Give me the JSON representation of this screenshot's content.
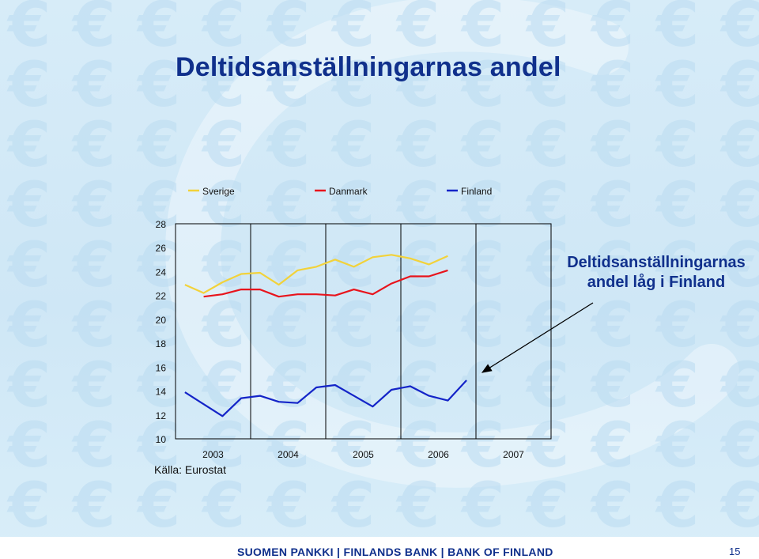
{
  "slide": {
    "title": "Deltidsanställningarnas andel",
    "annotation_line1": "Deltidsanställningarnas",
    "annotation_line2": "andel låg i Finland",
    "source": "Källa: Eurostat",
    "footer": "SUOMEN PANKKI | FINLANDS BANK | BANK OF FINLAND",
    "page_number": "15",
    "background_glyph": "€"
  },
  "colors": {
    "title": "#10308c",
    "sverige": "#f2d23a",
    "danmark": "#e8141c",
    "finland": "#1424c8"
  },
  "chart_data": {
    "type": "line",
    "title": "",
    "xlabel": "",
    "ylabel": "",
    "ylim": [
      10,
      28
    ],
    "yticks": [
      10,
      12,
      14,
      16,
      18,
      20,
      22,
      24,
      26,
      28
    ],
    "xticks": [
      "2003",
      "2004",
      "2005",
      "2006",
      "2007"
    ],
    "xlim": [
      2002.75,
      2007.75
    ],
    "grid": "vertical lines at year boundaries",
    "legend": "top",
    "x": [
      2002.875,
      2003.125,
      2003.375,
      2003.625,
      2003.875,
      2004.125,
      2004.375,
      2004.625,
      2004.875,
      2005.125,
      2005.375,
      2005.625,
      2005.875,
      2006.125,
      2006.375,
      2006.625,
      2006.875,
      2007.125,
      2007.375
    ],
    "series": [
      {
        "name": "Sverige",
        "values": [
          22.9,
          22.2,
          23.1,
          23.8,
          23.9,
          22.9,
          24.1,
          24.4,
          25.0,
          24.4,
          25.2,
          25.4,
          25.1,
          24.6,
          25.3,
          null,
          null,
          null,
          null
        ]
      },
      {
        "name": "Danmark",
        "values": [
          null,
          21.9,
          22.1,
          22.5,
          22.5,
          21.9,
          22.1,
          22.1,
          22.0,
          22.5,
          22.1,
          23.0,
          23.6,
          23.6,
          24.1,
          null,
          null,
          null,
          null
        ]
      },
      {
        "name": "Finland",
        "values": [
          13.9,
          12.9,
          11.9,
          13.4,
          13.6,
          13.1,
          13.0,
          14.3,
          14.5,
          13.6,
          12.7,
          14.1,
          14.4,
          13.6,
          13.2,
          14.9,
          null,
          null,
          null
        ]
      }
    ]
  }
}
